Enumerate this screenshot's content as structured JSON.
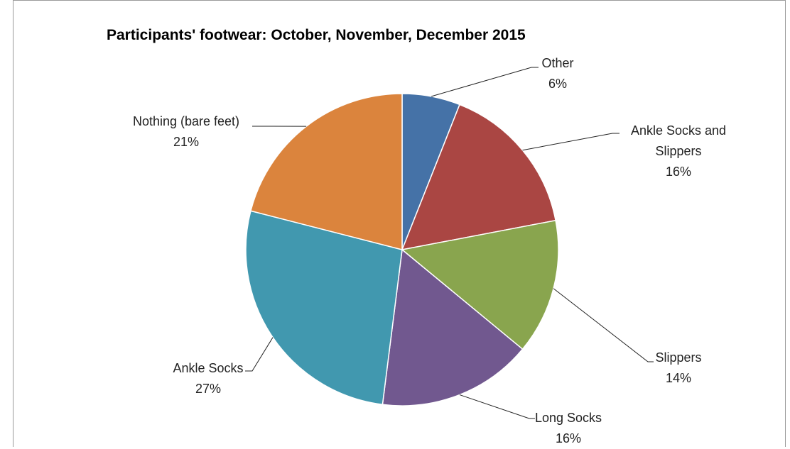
{
  "chart_data": {
    "type": "pie",
    "title": "Participants' footwear: October, November, December 2015",
    "categories": [
      "Other",
      "Ankle Socks and Slippers",
      "Slippers",
      "Long Socks",
      "Ankle Socks",
      "Nothing (bare feet)"
    ],
    "values": [
      6,
      16,
      14,
      16,
      27,
      21
    ],
    "value_labels": [
      "6%",
      "16%",
      "14%",
      "16%",
      "27%",
      "21%"
    ],
    "colors": [
      "#4572a7",
      "#aa4643",
      "#89a54e",
      "#71588f",
      "#4198af",
      "#db843d"
    ]
  }
}
